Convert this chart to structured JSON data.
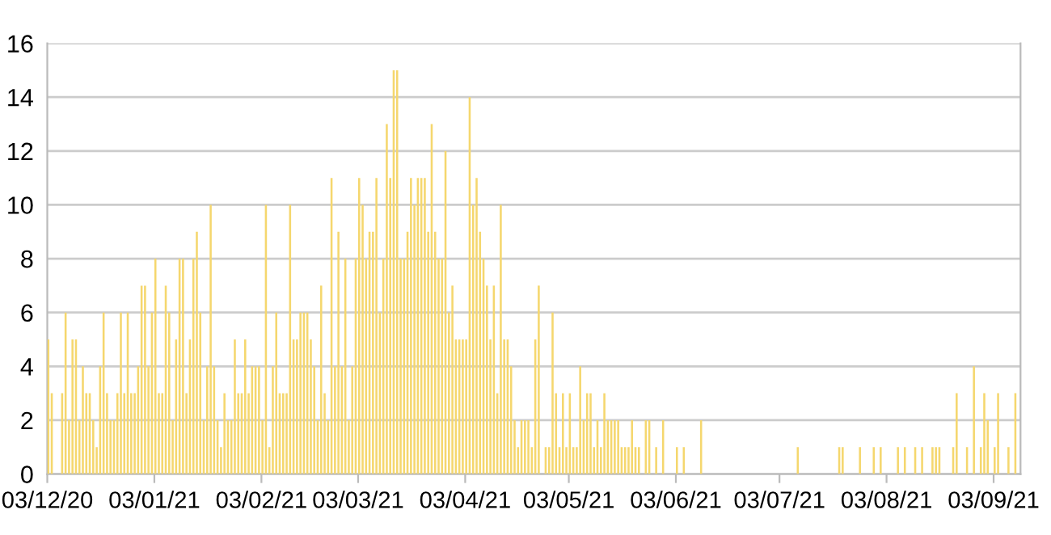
{
  "chart_data": {
    "type": "bar",
    "color": "#f5d76e",
    "grid": "y",
    "x": [
      "2020-12-03",
      "2020-12-04",
      "2020-12-07",
      "2020-12-08",
      "2020-12-09",
      "2020-12-10",
      "2020-12-11",
      "2020-12-12",
      "2020-12-13",
      "2020-12-14",
      "2020-12-15",
      "2020-12-16",
      "2020-12-17",
      "2020-12-18",
      "2020-12-19",
      "2020-12-20",
      "2020-12-21",
      "2020-12-22",
      "2020-12-23",
      "2020-12-24",
      "2020-12-25",
      "2020-12-26",
      "2020-12-27",
      "2020-12-28",
      "2020-12-29",
      "2020-12-30",
      "2020-12-31",
      "2021-01-01",
      "2021-01-02",
      "2021-01-03",
      "2021-01-04",
      "2021-01-05",
      "2021-01-06",
      "2021-01-07",
      "2021-01-08",
      "2021-01-09",
      "2021-01-10",
      "2021-01-11",
      "2021-01-12",
      "2021-01-13",
      "2021-01-14",
      "2021-01-15",
      "2021-01-16",
      "2021-01-17",
      "2021-01-18",
      "2021-01-19",
      "2021-01-20",
      "2021-01-21",
      "2021-01-22",
      "2021-01-23",
      "2021-01-24",
      "2021-01-25",
      "2021-01-26",
      "2021-01-27",
      "2021-01-28",
      "2021-01-29",
      "2021-01-30",
      "2021-01-31",
      "2021-02-01",
      "2021-02-02",
      "2021-02-03",
      "2021-02-04",
      "2021-02-05",
      "2021-02-06",
      "2021-02-07",
      "2021-02-08",
      "2021-02-09",
      "2021-02-10",
      "2021-02-11",
      "2021-02-12",
      "2021-02-13",
      "2021-02-14",
      "2021-02-15",
      "2021-02-16",
      "2021-02-17",
      "2021-02-18",
      "2021-02-19",
      "2021-02-20",
      "2021-02-21",
      "2021-02-22",
      "2021-02-23",
      "2021-02-24",
      "2021-02-25",
      "2021-02-26",
      "2021-02-27",
      "2021-02-28",
      "2021-03-01",
      "2021-03-02",
      "2021-03-03",
      "2021-03-04",
      "2021-03-05",
      "2021-03-06",
      "2021-03-07",
      "2021-03-08",
      "2021-03-09",
      "2021-03-10",
      "2021-03-11",
      "2021-03-12",
      "2021-03-13",
      "2021-03-14",
      "2021-03-15",
      "2021-03-16",
      "2021-03-17",
      "2021-03-18",
      "2021-03-19",
      "2021-03-20",
      "2021-03-21",
      "2021-03-22",
      "2021-03-23",
      "2021-03-24",
      "2021-03-25",
      "2021-03-26",
      "2021-03-27",
      "2021-03-28",
      "2021-03-29",
      "2021-03-30",
      "2021-03-31",
      "2021-04-01",
      "2021-04-02",
      "2021-04-03",
      "2021-04-04",
      "2021-04-05",
      "2021-04-06",
      "2021-04-07",
      "2021-04-08",
      "2021-04-09",
      "2021-04-10",
      "2021-04-11",
      "2021-04-12",
      "2021-04-13",
      "2021-04-14",
      "2021-04-15",
      "2021-04-16",
      "2021-04-17",
      "2021-04-18",
      "2021-04-19",
      "2021-04-20",
      "2021-04-21",
      "2021-04-22",
      "2021-04-23",
      "2021-04-24",
      "2021-04-26",
      "2021-04-27",
      "2021-04-28",
      "2021-04-29",
      "2021-04-30",
      "2021-05-01",
      "2021-05-02",
      "2021-05-03",
      "2021-05-04",
      "2021-05-05",
      "2021-05-06",
      "2021-05-07",
      "2021-05-08",
      "2021-05-09",
      "2021-05-10",
      "2021-05-11",
      "2021-05-12",
      "2021-05-13",
      "2021-05-14",
      "2021-05-15",
      "2021-05-16",
      "2021-05-17",
      "2021-05-18",
      "2021-05-19",
      "2021-05-20",
      "2021-05-21",
      "2021-05-22",
      "2021-05-23",
      "2021-05-25",
      "2021-05-26",
      "2021-05-28",
      "2021-05-30",
      "2021-06-03",
      "2021-06-05",
      "2021-06-10",
      "2021-07-08",
      "2021-07-20",
      "2021-07-21",
      "2021-07-26",
      "2021-07-30",
      "2021-08-01",
      "2021-08-06",
      "2021-08-08",
      "2021-08-11",
      "2021-08-13",
      "2021-08-16",
      "2021-08-17",
      "2021-08-18",
      "2021-08-22",
      "2021-08-23",
      "2021-08-26",
      "2021-08-28",
      "2021-08-30",
      "2021-08-31",
      "2021-09-01",
      "2021-09-03",
      "2021-09-04",
      "2021-09-07",
      "2021-09-09"
    ],
    "values": [
      5,
      3,
      3,
      6,
      2,
      5,
      5,
      2,
      4,
      3,
      3,
      2,
      1,
      4,
      6,
      3,
      2,
      2,
      3,
      6,
      3,
      6,
      3,
      3,
      4,
      7,
      7,
      4,
      6,
      8,
      3,
      3,
      7,
      6,
      2,
      5,
      8,
      8,
      3,
      5,
      8,
      9,
      6,
      2,
      4,
      10,
      4,
      2,
      1,
      3,
      2,
      2,
      5,
      3,
      3,
      5,
      3,
      4,
      4,
      4,
      2,
      10,
      1,
      4,
      6,
      3,
      3,
      3,
      10,
      5,
      5,
      6,
      6,
      6,
      5,
      4,
      2,
      7,
      3,
      2,
      11,
      4,
      9,
      4,
      8,
      2,
      4,
      8,
      11,
      10,
      8,
      9,
      9,
      11,
      6,
      8,
      13,
      11,
      15,
      15,
      8,
      8,
      9,
      11,
      10,
      11,
      11,
      11,
      9,
      13,
      9,
      8,
      8,
      12,
      6,
      7,
      5,
      5,
      5,
      5,
      14,
      10,
      11,
      9,
      8,
      7,
      5,
      7,
      3,
      10,
      5,
      5,
      4,
      2,
      1,
      2,
      2,
      2,
      1,
      5,
      7,
      1,
      1,
      6,
      3,
      1,
      3,
      1,
      3,
      1,
      1,
      4,
      2,
      3,
      3,
      1,
      2,
      1,
      3,
      2,
      2,
      2,
      2,
      1,
      1,
      1,
      2,
      1,
      1,
      2,
      2,
      1,
      2,
      1,
      1,
      2,
      1,
      1,
      1,
      1,
      1,
      1,
      1,
      1,
      1,
      1,
      1,
      1,
      1,
      1,
      3,
      1,
      4,
      1,
      3,
      2,
      1,
      3,
      1,
      3
    ],
    "xlim": [
      "2020-12-03",
      "2021-09-10T19:00"
    ],
    "xticks": [
      {
        "value": "2020-12-03",
        "label": "03/12/20"
      },
      {
        "value": "2021-01-03",
        "label": "03/01/21"
      },
      {
        "value": "2021-02-03",
        "label": "03/02/21"
      },
      {
        "value": "2021-03-03",
        "label": "03/03/21"
      },
      {
        "value": "2021-04-03",
        "label": "03/04/21"
      },
      {
        "value": "2021-05-03",
        "label": "03/05/21"
      },
      {
        "value": "2021-06-03",
        "label": "03/06/21"
      },
      {
        "value": "2021-07-03",
        "label": "03/07/21"
      },
      {
        "value": "2021-08-03",
        "label": "03/08/21"
      },
      {
        "value": "2021-09-03",
        "label": "03/09/21"
      }
    ],
    "ylim": [
      0,
      16
    ],
    "yticks": [
      0,
      2,
      4,
      6,
      8,
      10,
      12,
      14,
      16
    ]
  }
}
